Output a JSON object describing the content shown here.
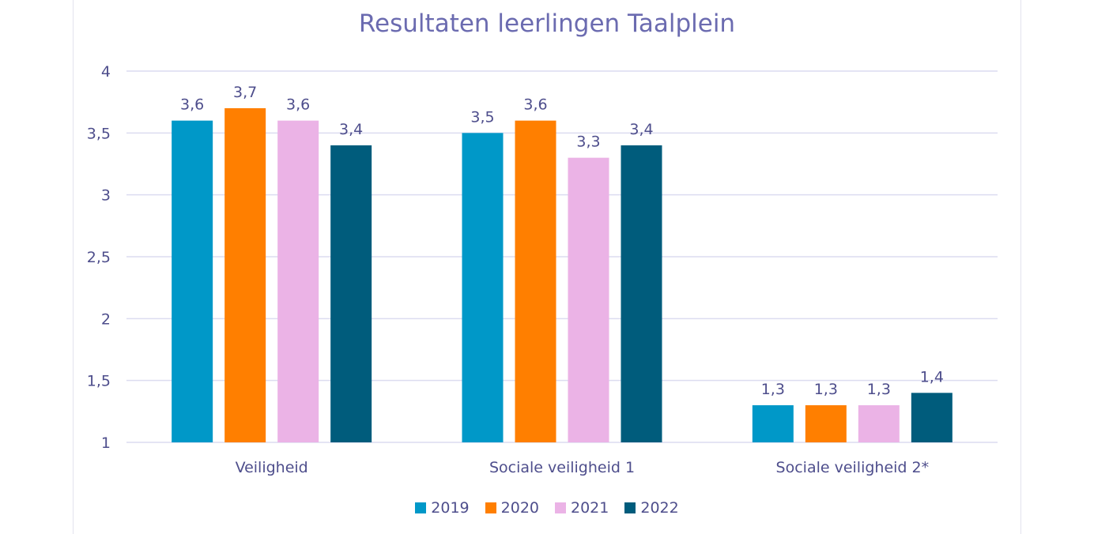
{
  "chart_data": {
    "type": "bar",
    "title": "Resultaten leerlingen Taalplein",
    "xlabel": "",
    "ylabel": "",
    "ylim": [
      1,
      4
    ],
    "yticks": [
      "1",
      "1,5",
      "2",
      "2,5",
      "3",
      "3,5",
      "4"
    ],
    "grid": true,
    "legend_position": "bottom",
    "categories": [
      "Veiligheid",
      "Sociale veiligheid 1",
      "Sociale veiligheid 2*"
    ],
    "series": [
      {
        "name": "2019",
        "color": "#0098c8",
        "values": [
          3.6,
          3.5,
          1.3
        ],
        "labels": [
          "3,6",
          "3,5",
          "1,3"
        ]
      },
      {
        "name": "2020",
        "color": "#ff7f00",
        "values": [
          3.7,
          3.6,
          1.3
        ],
        "labels": [
          "3,7",
          "3,6",
          "1,3"
        ]
      },
      {
        "name": "2021",
        "color": "#ebb3e6",
        "values": [
          3.6,
          3.3,
          1.3
        ],
        "labels": [
          "3,6",
          "3,3",
          "1,3"
        ]
      },
      {
        "name": "2022",
        "color": "#005c7c",
        "values": [
          3.4,
          3.4,
          1.4
        ],
        "labels": [
          "3,4",
          "3,4",
          "1,4"
        ]
      }
    ]
  }
}
